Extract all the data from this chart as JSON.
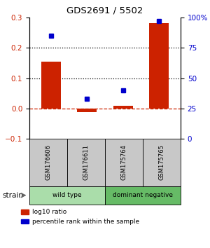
{
  "title": "GDS2691 / 5502",
  "samples": [
    "GSM176606",
    "GSM176611",
    "GSM175764",
    "GSM175765"
  ],
  "log10_ratio": [
    0.155,
    -0.012,
    0.01,
    0.28
  ],
  "percentile_rank": [
    85,
    33,
    40,
    97
  ],
  "bar_color": "#cc2200",
  "dot_color": "#0000cc",
  "ylim_left": [
    -0.1,
    0.3
  ],
  "ylim_right": [
    0,
    100
  ],
  "yticks_left": [
    -0.1,
    0,
    0.1,
    0.2,
    0.3
  ],
  "yticks_right": [
    0,
    25,
    50,
    75,
    100
  ],
  "ytick_labels_right": [
    "0",
    "25",
    "50",
    "75",
    "100%"
  ],
  "hlines_dotted": [
    0.1,
    0.2
  ],
  "hline_dashed_color": "#cc2200",
  "groups": [
    {
      "label": "wild type",
      "color": "#aaddaa",
      "start": 0,
      "end": 2
    },
    {
      "label": "dominant negative",
      "color": "#66bb66",
      "start": 2,
      "end": 4
    }
  ],
  "strain_label": "strain",
  "legend": [
    {
      "color": "#cc2200",
      "label": "log10 ratio"
    },
    {
      "color": "#0000cc",
      "label": "percentile rank within the sample"
    }
  ],
  "fig_width": 3.0,
  "fig_height": 3.54,
  "dpi": 100,
  "bg_color": "#ffffff"
}
